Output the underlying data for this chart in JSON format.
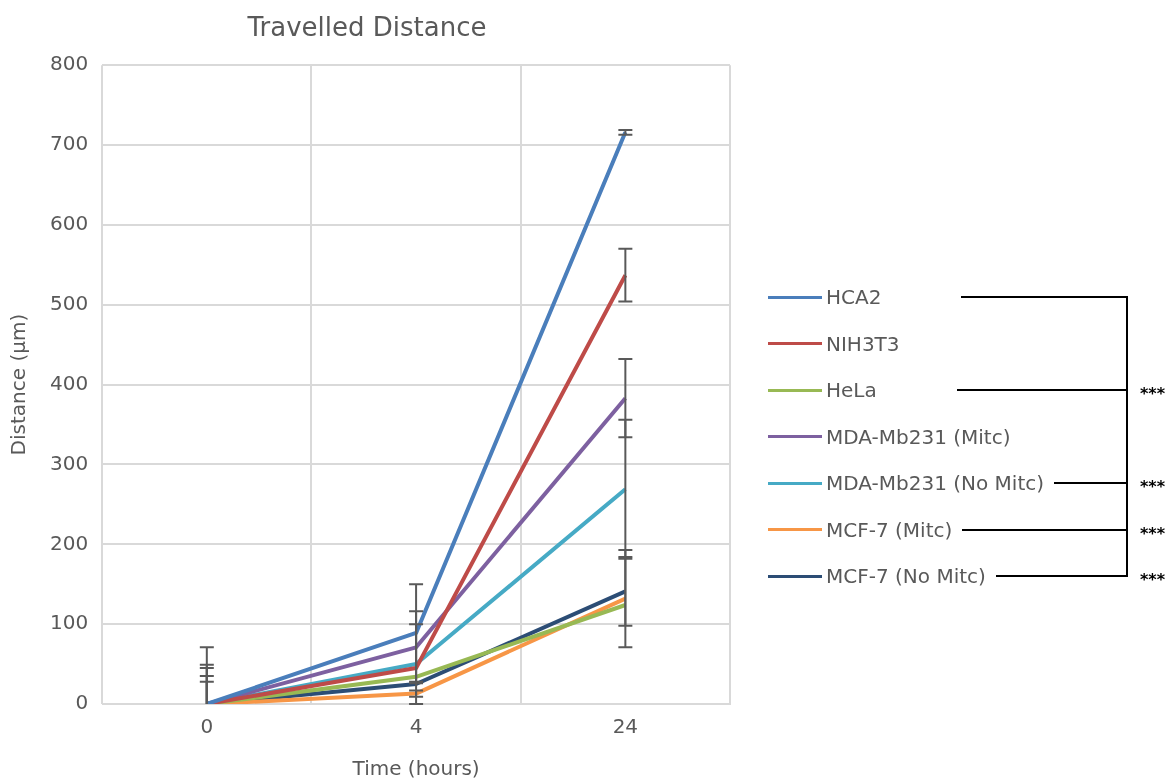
{
  "chart_data": {
    "type": "line",
    "title": "Travelled Distance",
    "xlabel": "Time (hours)",
    "ylabel": "Distance (µm)",
    "categories": [
      "0",
      "4",
      "24"
    ],
    "ylim": [
      0,
      800
    ],
    "yticks": [
      0,
      100,
      200,
      300,
      400,
      500,
      600,
      700,
      800
    ],
    "grid": true,
    "legend": "right",
    "marker": "none",
    "line_style": "solid",
    "series": [
      {
        "name": "HCA2",
        "color": "#4a7ebb",
        "values": [
          0,
          89,
          716
        ],
        "errors": [
          [
            0,
            71
          ],
          61,
          3
        ]
      },
      {
        "name": "NIH3T3",
        "color": "#be4b48",
        "values": [
          0,
          45,
          537
        ],
        "errors": [
          [
            0,
            49
          ],
          null,
          33
        ]
      },
      {
        "name": "HeLa",
        "color": "#98b954",
        "values": [
          0,
          34,
          124
        ],
        "errors": [
          null,
          null,
          null
        ]
      },
      {
        "name": "MDA-Mb231 (Mitc)",
        "color": "#7d60a0",
        "values": [
          0,
          71,
          383
        ],
        "errors": [
          [
            0,
            45
          ],
          45,
          49
        ]
      },
      {
        "name": "MDA-Mb231 (No Mitc)",
        "color": "#46aac5",
        "values": [
          0,
          50,
          269
        ],
        "errors": [
          [
            0,
            35
          ],
          50,
          87
        ]
      },
      {
        "name": "MCF-7 (Mitc)",
        "color": "#f79646",
        "values": [
          0,
          13,
          132
        ],
        "errors": [
          null,
          4,
          61
        ]
      },
      {
        "name": "MCF-7 (No Mitc)",
        "color": "#2c4d75",
        "values": [
          0,
          25,
          141
        ],
        "errors": [
          [
            0,
            28
          ],
          null,
          43
        ]
      }
    ],
    "annotations": [
      "***",
      "***",
      "***",
      "***"
    ]
  }
}
